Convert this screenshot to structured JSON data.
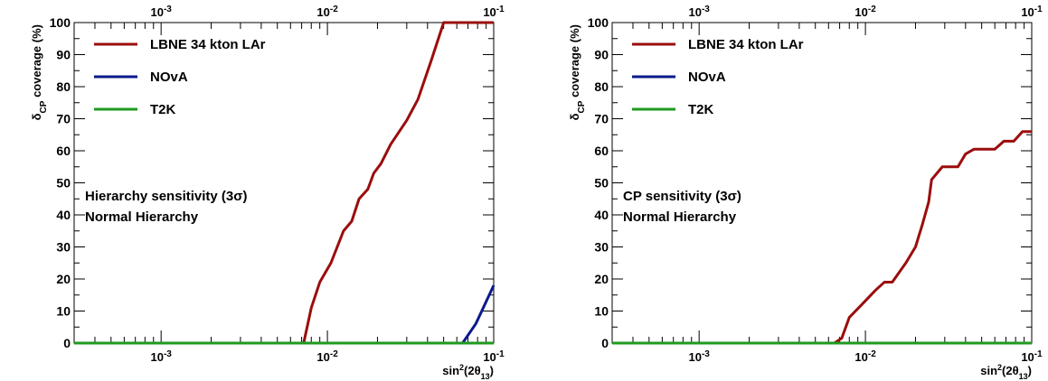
{
  "chart_data": [
    {
      "type": "line",
      "title": "",
      "xlabel": "sin²(2θ13)",
      "ylabel": "δCP coverage (%)",
      "x_scale": "log",
      "xlim": [
        0.0003,
        0.1
      ],
      "ylim": [
        0,
        100
      ],
      "x_ticks": [
        0.001,
        0.01,
        0.1
      ],
      "x_tick_labels": [
        "10-3",
        "10-2",
        "10-1"
      ],
      "y_ticks": [
        0,
        10,
        20,
        30,
        40,
        50,
        60,
        70,
        80,
        90,
        100
      ],
      "legend_position": "top-left",
      "annotations": [
        "Hierarchy sensitivity (3σ)",
        "Normal Hierarchy"
      ],
      "series": [
        {
          "name": "LBNE 34 kton LAr",
          "color": "#9b0d0d",
          "points": [
            [
              0.0003,
              0
            ],
            [
              0.0072,
              0
            ],
            [
              0.008,
              11
            ],
            [
              0.009,
              19
            ],
            [
              0.0105,
              25
            ],
            [
              0.0125,
              35
            ],
            [
              0.014,
              38
            ],
            [
              0.0155,
              45
            ],
            [
              0.0175,
              48
            ],
            [
              0.019,
              53
            ],
            [
              0.021,
              56
            ],
            [
              0.024,
              62
            ],
            [
              0.03,
              69.5
            ],
            [
              0.035,
              76
            ],
            [
              0.042,
              88
            ],
            [
              0.05,
              100
            ],
            [
              0.1,
              100
            ]
          ]
        },
        {
          "name": "NOvA",
          "color": "#0a1a8c",
          "points": [
            [
              0.0003,
              0
            ],
            [
              0.065,
              0
            ],
            [
              0.078,
              6
            ],
            [
              0.1,
              18
            ]
          ]
        },
        {
          "name": "T2K",
          "color": "#1f9a1f",
          "points": [
            [
              0.0003,
              0
            ],
            [
              0.1,
              0
            ]
          ]
        }
      ]
    },
    {
      "type": "line",
      "title": "",
      "xlabel": "sin²(2θ13)",
      "ylabel": "δCP coverage (%)",
      "x_scale": "log",
      "xlim": [
        0.0003,
        0.1
      ],
      "ylim": [
        0,
        100
      ],
      "x_ticks": [
        0.001,
        0.01,
        0.1
      ],
      "x_tick_labels": [
        "10-3",
        "10-2",
        "10-1"
      ],
      "y_ticks": [
        0,
        10,
        20,
        30,
        40,
        50,
        60,
        70,
        80,
        90,
        100
      ],
      "legend_position": "top-left",
      "annotations": [
        "CP sensitivity (3σ)",
        "Normal Hierarchy"
      ],
      "series": [
        {
          "name": "LBNE 34 kton LAr",
          "color": "#9b0d0d",
          "points": [
            [
              0.0003,
              0
            ],
            [
              0.0065,
              0
            ],
            [
              0.0072,
              1.5
            ],
            [
              0.008,
              8
            ],
            [
              0.0095,
              12
            ],
            [
              0.0115,
              16.5
            ],
            [
              0.013,
              19
            ],
            [
              0.0145,
              19
            ],
            [
              0.0175,
              25
            ],
            [
              0.02,
              30
            ],
            [
              0.022,
              37
            ],
            [
              0.024,
              44
            ],
            [
              0.025,
              51
            ],
            [
              0.029,
              55
            ],
            [
              0.036,
              55
            ],
            [
              0.04,
              59
            ],
            [
              0.045,
              60.5
            ],
            [
              0.06,
              60.5
            ],
            [
              0.068,
              63
            ],
            [
              0.078,
              63
            ],
            [
              0.088,
              66
            ],
            [
              0.1,
              66
            ]
          ]
        },
        {
          "name": "NOvA",
          "color": "#0a1a8c",
          "points": [
            [
              0.0003,
              0
            ],
            [
              0.1,
              0
            ]
          ]
        },
        {
          "name": "T2K",
          "color": "#1f9a1f",
          "points": [
            [
              0.0003,
              0
            ],
            [
              0.1,
              0
            ]
          ]
        }
      ]
    }
  ]
}
